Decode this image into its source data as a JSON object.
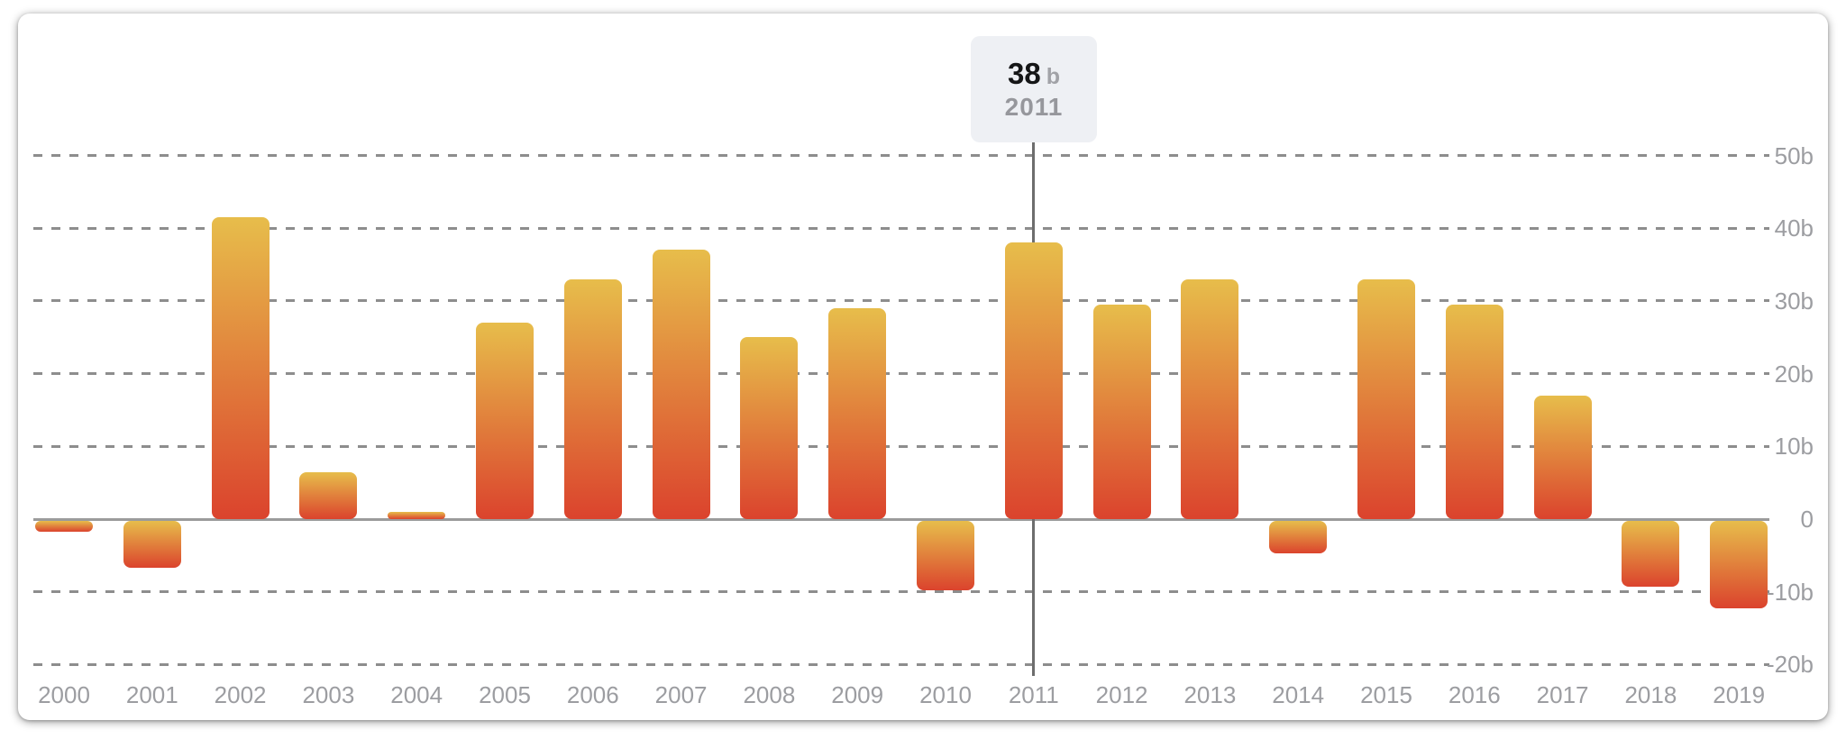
{
  "tooltip": {
    "value": "38",
    "unit": "b",
    "year": "2011"
  },
  "colors": {
    "card_bg": "#ffffff",
    "bar_gradient_top": "#e7bd4b",
    "bar_gradient_bottom": "#db432d",
    "grid_line": "#8d8d8d",
    "axis_line": "#9b9b9b",
    "tick_label": "#9c9da1",
    "reference_line": "#6d6d6d",
    "tooltip_bg": "#eef0f4",
    "tooltip_value": "#151617",
    "tooltip_unit": "#a1a2a7",
    "tooltip_year": "#96979c"
  },
  "chart_data": {
    "type": "bar",
    "title": "",
    "xlabel": "",
    "ylabel": "",
    "unit": "b",
    "categories": [
      "2000",
      "2001",
      "2002",
      "2003",
      "2004",
      "2005",
      "2006",
      "2007",
      "2008",
      "2009",
      "2010",
      "2011",
      "2012",
      "2013",
      "2014",
      "2015",
      "2016",
      "2017",
      "2018",
      "2019"
    ],
    "values": [
      -1.5,
      -6.5,
      41.5,
      6.5,
      1,
      27,
      33,
      37,
      25,
      29,
      -9.5,
      38,
      29.5,
      33,
      -4.5,
      33,
      29.5,
      17,
      -9,
      -12
    ],
    "y_ticks": [
      {
        "label": "50b",
        "value": 50
      },
      {
        "label": "40b",
        "value": 40
      },
      {
        "label": "30b",
        "value": 30
      },
      {
        "label": "20b",
        "value": 20
      },
      {
        "label": "10b",
        "value": 10
      },
      {
        "label": "0",
        "value": 0
      },
      {
        "label": "-10b",
        "value": -10
      },
      {
        "label": "-20b",
        "value": -20
      }
    ],
    "ylim": [
      -20,
      50
    ],
    "grid": "dashed-horizontal",
    "legend": "none",
    "highlight": {
      "category": "2011",
      "value": 38,
      "value_label": "38",
      "unit": "b"
    }
  }
}
